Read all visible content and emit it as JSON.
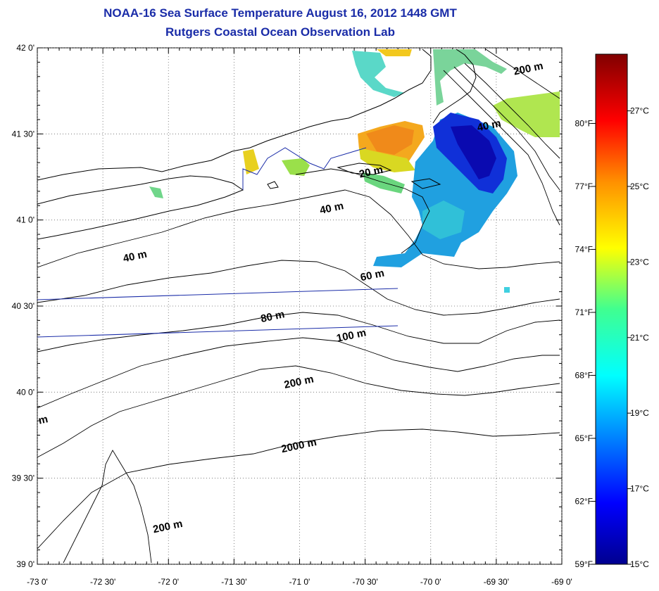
{
  "title": "NOAA-16 Sea Surface Temperature August 16, 2012 1448 GMT",
  "subtitle": "Rutgers Coastal Ocean Observation Lab",
  "map": {
    "lat_labels": [
      "42 0'",
      "41 30'",
      "41 0'",
      "40 30'",
      "40 0'",
      "39 30'",
      "39 0'"
    ],
    "lon_labels": [
      "-73 0'",
      "-72 30'",
      "-72 0'",
      "-71 30'",
      "-71 0'",
      "-70 30'",
      "-70 0'",
      "-69 30'",
      "-69 0'"
    ],
    "lat_range": [
      39.0,
      42.0
    ],
    "lon_range": [
      -73.0,
      -69.0
    ],
    "contours": [
      {
        "label": "200 m",
        "lon": -69.25,
        "lat": 41.86
      },
      {
        "label": "40 m",
        "lon": -69.55,
        "lat": 41.53
      },
      {
        "label": "20 m",
        "lon": -70.45,
        "lat": 41.26
      },
      {
        "label": "40 m",
        "lon": -70.75,
        "lat": 41.05
      },
      {
        "label": "40 m",
        "lon": -72.25,
        "lat": 40.77
      },
      {
        "label": "60 m",
        "lon": -70.44,
        "lat": 40.66
      },
      {
        "label": "80 m",
        "lon": -71.2,
        "lat": 40.42
      },
      {
        "label": "100 m",
        "lon": -70.6,
        "lat": 40.31
      },
      {
        "label": "200 m",
        "lon": -71.0,
        "lat": 40.04
      },
      {
        "label": "2000 m",
        "lon": -71.0,
        "lat": 39.67
      },
      {
        "label": "200 m",
        "lon": -72.0,
        "lat": 39.2
      },
      {
        "label": "m",
        "lon": -72.95,
        "lat": 39.82
      }
    ]
  },
  "colorbar": {
    "celsius_labels": [
      "27°C",
      "25°C",
      "23°C",
      "21°C",
      "19°C",
      "17°C",
      "15°C"
    ],
    "fahrenheit_labels": [
      "80°F",
      "77°F",
      "74°F",
      "71°F",
      "68°F",
      "65°F",
      "62°F",
      "59°F"
    ],
    "c_range": [
      15,
      28.5
    ]
  }
}
